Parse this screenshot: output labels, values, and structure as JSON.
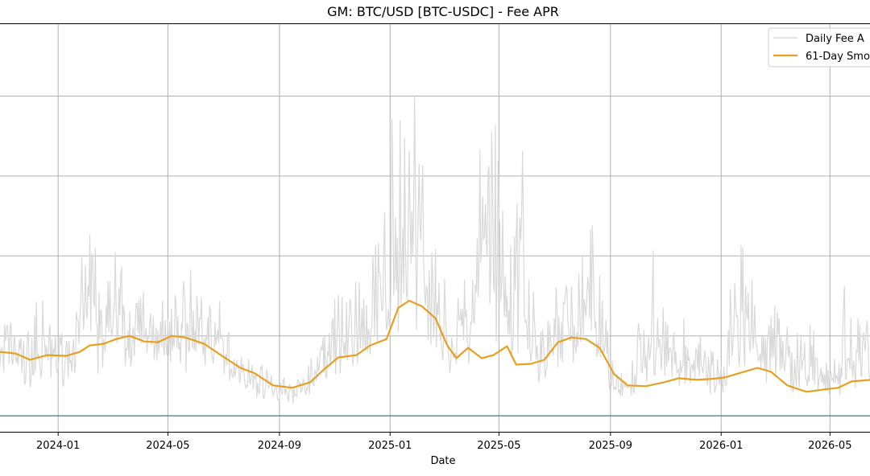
{
  "chart_data": {
    "type": "line",
    "title": "GM: BTC/USD [BTC-USDC] - Fee APR",
    "xlabel": "Date",
    "ylabel": "",
    "x_ticks": [
      "2024-01",
      "2024-05",
      "2024-09",
      "2025-01",
      "2025-05",
      "2025-09",
      "2026-01",
      "2026-05"
    ],
    "xlim": [
      "2023-10-28",
      "2026-06-15"
    ],
    "ylim": [
      -0.2,
      4.9
    ],
    "grid": true,
    "legend_position": "top-right",
    "reference_line": {
      "y": 0,
      "color": "#3a7d8c"
    },
    "series": [
      {
        "name": "Daily Fee A",
        "color": "#d9d9d9",
        "style": "noisy-daily",
        "points": [
          [
            "2023-10-28",
            0.6
          ],
          [
            "2023-11-10",
            1.0
          ],
          [
            "2023-11-25",
            0.5
          ],
          [
            "2023-12-10",
            1.1
          ],
          [
            "2024-01-01",
            0.7
          ],
          [
            "2024-01-20",
            0.9
          ],
          [
            "2024-02-05",
            2.5
          ],
          [
            "2024-02-20",
            0.8
          ],
          [
            "2024-03-05",
            2.2
          ],
          [
            "2024-03-25",
            1.0
          ],
          [
            "2024-04-15",
            1.4
          ],
          [
            "2024-05-05",
            0.9
          ],
          [
            "2024-05-25",
            1.7
          ],
          [
            "2024-06-15",
            1.2
          ],
          [
            "2024-07-10",
            0.7
          ],
          [
            "2024-08-01",
            0.4
          ],
          [
            "2024-08-25",
            0.3
          ],
          [
            "2024-09-20",
            0.2
          ],
          [
            "2024-10-15",
            0.8
          ],
          [
            "2024-11-10",
            1.3
          ],
          [
            "2024-12-05",
            1.4
          ],
          [
            "2024-12-25",
            2.3
          ],
          [
            "2025-01-05",
            2.8
          ],
          [
            "2025-01-20",
            3.4
          ],
          [
            "2025-02-01",
            3.7
          ],
          [
            "2025-02-15",
            2.0
          ],
          [
            "2025-03-05",
            1.0
          ],
          [
            "2025-03-25",
            1.3
          ],
          [
            "2025-04-12",
            4.1
          ],
          [
            "2025-04-25",
            4.7
          ],
          [
            "2025-05-10",
            1.2
          ],
          [
            "2025-05-25",
            2.9
          ],
          [
            "2025-06-15",
            0.8
          ],
          [
            "2025-07-05",
            1.2
          ],
          [
            "2025-07-25",
            1.8
          ],
          [
            "2025-08-15",
            2.2
          ],
          [
            "2025-09-01",
            0.4
          ],
          [
            "2025-09-20",
            0.2
          ],
          [
            "2025-10-15",
            1.8
          ],
          [
            "2025-11-10",
            1.1
          ],
          [
            "2025-12-01",
            0.9
          ],
          [
            "2025-12-20",
            0.6
          ],
          [
            "2026-01-05",
            0.3
          ],
          [
            "2026-01-25",
            3.4
          ],
          [
            "2026-02-10",
            1.2
          ],
          [
            "2026-03-01",
            2.0
          ],
          [
            "2026-03-20",
            0.7
          ],
          [
            "2026-04-10",
            1.1
          ],
          [
            "2026-05-01",
            0.5
          ],
          [
            "2026-05-20",
            1.3
          ],
          [
            "2026-06-15",
            0.9
          ]
        ]
      },
      {
        "name": "61-Day Smo",
        "color": "#e6a020",
        "style": "smooth",
        "points": [
          [
            "2023-10-28",
            0.8
          ],
          [
            "2023-11-15",
            0.78
          ],
          [
            "2023-12-01",
            0.7
          ],
          [
            "2023-12-20",
            0.76
          ],
          [
            "2024-01-10",
            0.75
          ],
          [
            "2024-01-25",
            0.8
          ],
          [
            "2024-02-05",
            0.88
          ],
          [
            "2024-02-20",
            0.9
          ],
          [
            "2024-03-05",
            0.96
          ],
          [
            "2024-03-20",
            1.0
          ],
          [
            "2024-04-05",
            0.93
          ],
          [
            "2024-04-20",
            0.92
          ],
          [
            "2024-05-05",
            1.0
          ],
          [
            "2024-05-20",
            0.98
          ],
          [
            "2024-06-10",
            0.9
          ],
          [
            "2024-07-01",
            0.74
          ],
          [
            "2024-07-20",
            0.6
          ],
          [
            "2024-08-05",
            0.53
          ],
          [
            "2024-08-25",
            0.38
          ],
          [
            "2024-09-15",
            0.35
          ],
          [
            "2024-10-05",
            0.42
          ],
          [
            "2024-10-20",
            0.58
          ],
          [
            "2024-11-05",
            0.73
          ],
          [
            "2024-11-25",
            0.76
          ],
          [
            "2024-12-10",
            0.88
          ],
          [
            "2024-12-28",
            0.96
          ],
          [
            "2025-01-10",
            1.35
          ],
          [
            "2025-01-22",
            1.44
          ],
          [
            "2025-02-05",
            1.37
          ],
          [
            "2025-02-20",
            1.22
          ],
          [
            "2025-03-05",
            0.88
          ],
          [
            "2025-03-15",
            0.72
          ],
          [
            "2025-03-28",
            0.85
          ],
          [
            "2025-04-12",
            0.72
          ],
          [
            "2025-04-25",
            0.76
          ],
          [
            "2025-05-10",
            0.87
          ],
          [
            "2025-05-20",
            0.64
          ],
          [
            "2025-06-05",
            0.65
          ],
          [
            "2025-06-20",
            0.7
          ],
          [
            "2025-07-05",
            0.92
          ],
          [
            "2025-07-20",
            0.98
          ],
          [
            "2025-08-05",
            0.96
          ],
          [
            "2025-08-20",
            0.85
          ],
          [
            "2025-09-05",
            0.52
          ],
          [
            "2025-09-20",
            0.38
          ],
          [
            "2025-10-10",
            0.37
          ],
          [
            "2025-10-30",
            0.42
          ],
          [
            "2025-11-15",
            0.47
          ],
          [
            "2025-12-05",
            0.45
          ],
          [
            "2025-12-20",
            0.46
          ],
          [
            "2026-01-05",
            0.48
          ],
          [
            "2026-01-20",
            0.53
          ],
          [
            "2026-02-10",
            0.6
          ],
          [
            "2026-02-25",
            0.55
          ],
          [
            "2026-03-15",
            0.38
          ],
          [
            "2026-04-05",
            0.3
          ],
          [
            "2026-04-25",
            0.33
          ],
          [
            "2026-05-10",
            0.35
          ],
          [
            "2026-05-25",
            0.43
          ],
          [
            "2026-06-15",
            0.45
          ]
        ]
      }
    ]
  }
}
